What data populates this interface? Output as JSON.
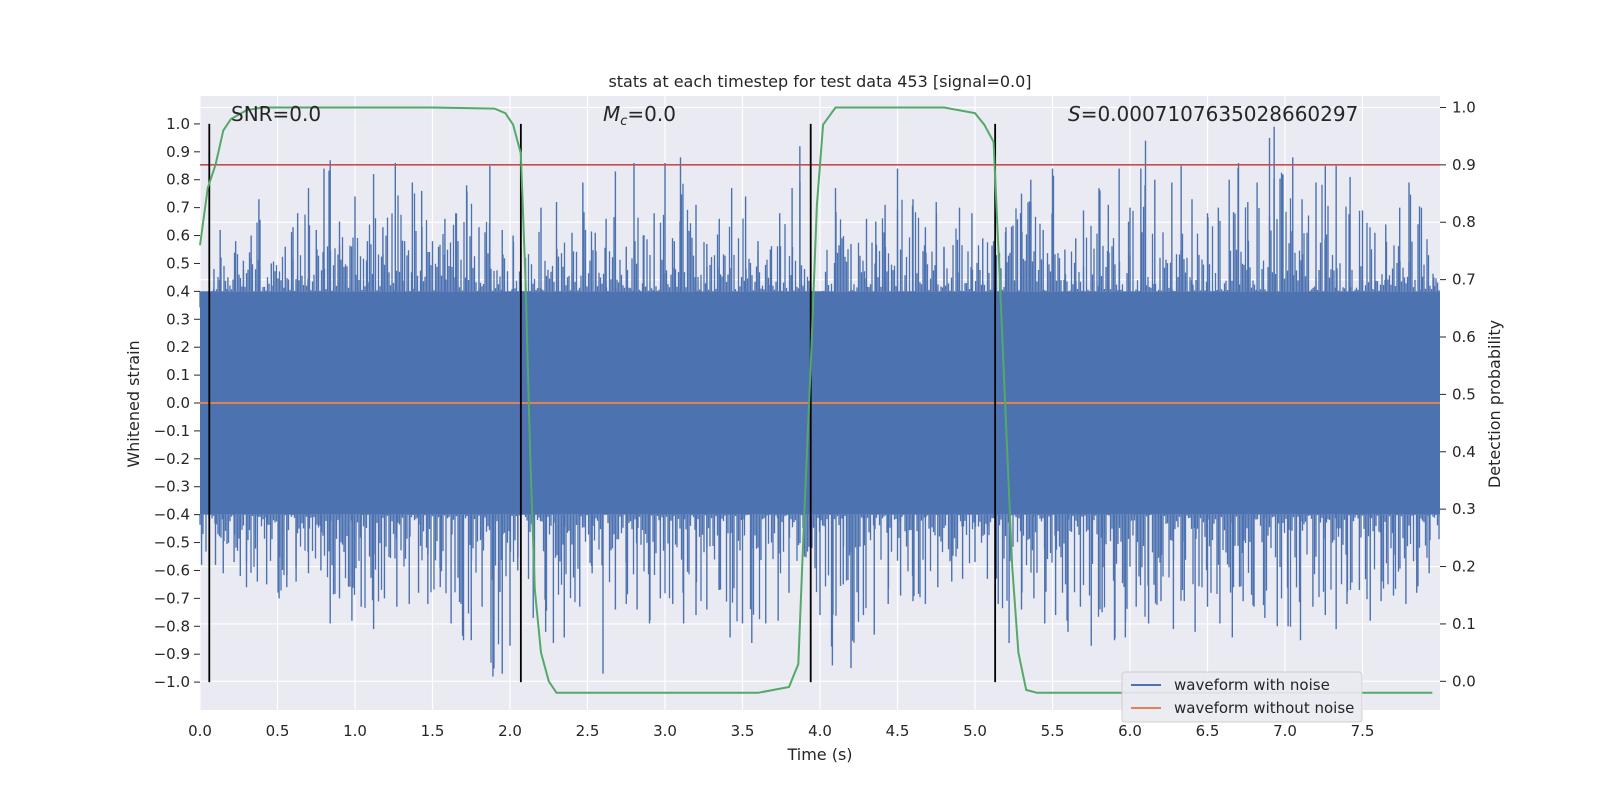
{
  "chart_data": {
    "type": "line",
    "title": "stats at each timestep for test data 453 [signal=0.0]",
    "xlabel": "Time (s)",
    "ylabel": "Whitened strain",
    "y2label": "Detection probability",
    "xlim": [
      0.0,
      8.0
    ],
    "ylim": [
      -1.1,
      1.1
    ],
    "y2lim": [
      -0.05,
      1.02
    ],
    "xticks": [
      0.0,
      0.5,
      1.0,
      1.5,
      2.0,
      2.5,
      3.0,
      3.5,
      4.0,
      4.5,
      5.0,
      5.5,
      6.0,
      6.5,
      7.0,
      7.5
    ],
    "yticks": [
      -1.0,
      -0.9,
      -0.8,
      -0.7,
      -0.6,
      -0.5,
      -0.4,
      -0.3,
      -0.2,
      -0.1,
      0.0,
      0.1,
      0.2,
      0.3,
      0.4,
      0.5,
      0.6,
      0.7,
      0.8,
      0.9,
      1.0
    ],
    "y2ticks": [
      0.0,
      0.1,
      0.2,
      0.3,
      0.4,
      0.5,
      0.6,
      0.7,
      0.8,
      0.9,
      1.0
    ],
    "annotations": [
      {
        "text": "SNR=0.0",
        "x": 0.2
      },
      {
        "text": "M",
        "sub": "c",
        "rest": "=0.0",
        "x": 2.6
      },
      {
        "text": "S",
        "rest": "=0.0007107635028660297",
        "x": 5.6
      }
    ],
    "vlines": [
      0.06,
      2.07,
      3.94,
      5.13
    ],
    "vline_range": [
      -1.0,
      1.0
    ],
    "threshold": {
      "axis": "y2",
      "value": 0.9
    },
    "noise_envelope": {
      "inner_min": -0.4,
      "inner_max": 0.4,
      "spikes_up": [
        [
          0.05,
          0.3
        ],
        [
          0.09,
          0.48
        ],
        [
          0.13,
          0.62
        ],
        [
          0.18,
          0.45
        ],
        [
          0.23,
          0.58
        ],
        [
          0.28,
          0.51
        ],
        [
          0.33,
          0.6
        ],
        [
          0.38,
          0.73
        ],
        [
          0.46,
          0.5
        ],
        [
          0.55,
          0.56
        ],
        [
          0.6,
          0.63
        ],
        [
          0.63,
          0.68
        ],
        [
          0.7,
          0.77
        ],
        [
          0.75,
          0.62
        ],
        [
          0.8,
          0.84
        ],
        [
          0.84,
          0.87
        ],
        [
          0.9,
          0.65
        ],
        [
          1.0,
          0.74
        ],
        [
          1.08,
          0.58
        ],
        [
          1.12,
          0.82
        ],
        [
          1.18,
          0.63
        ],
        [
          1.26,
          0.86
        ],
        [
          1.32,
          0.58
        ],
        [
          1.37,
          0.79
        ],
        [
          1.43,
          0.76
        ],
        [
          1.5,
          0.58
        ],
        [
          1.58,
          0.66
        ],
        [
          1.65,
          0.68
        ],
        [
          1.72,
          0.78
        ],
        [
          1.8,
          0.63
        ],
        [
          1.87,
          0.85
        ],
        [
          1.95,
          0.62
        ],
        [
          2.02,
          0.6
        ],
        [
          2.1,
          0.52
        ],
        [
          2.2,
          0.7
        ],
        [
          2.3,
          0.72
        ],
        [
          2.4,
          0.61
        ],
        [
          2.47,
          0.79
        ],
        [
          2.55,
          0.61
        ],
        [
          2.62,
          0.66
        ],
        [
          2.68,
          0.83
        ],
        [
          2.75,
          0.56
        ],
        [
          2.8,
          0.86
        ],
        [
          2.86,
          0.6
        ],
        [
          2.93,
          0.68
        ],
        [
          3.0,
          0.86
        ],
        [
          3.06,
          0.58
        ],
        [
          3.1,
          0.88
        ],
        [
          3.2,
          0.71
        ],
        [
          3.27,
          0.57
        ],
        [
          3.35,
          0.66
        ],
        [
          3.43,
          0.77
        ],
        [
          3.52,
          0.74
        ],
        [
          3.6,
          0.58
        ],
        [
          3.68,
          0.55
        ],
        [
          3.74,
          0.68
        ],
        [
          3.82,
          0.77
        ],
        [
          3.87,
          0.92
        ],
        [
          3.9,
          0.48
        ],
        [
          4.0,
          0.37
        ],
        [
          4.1,
          0.77
        ],
        [
          4.2,
          0.57
        ],
        [
          4.3,
          0.66
        ],
        [
          4.36,
          0.65
        ],
        [
          4.42,
          0.71
        ],
        [
          4.5,
          0.84
        ],
        [
          4.6,
          0.73
        ],
        [
          4.68,
          0.63
        ],
        [
          4.75,
          0.72
        ],
        [
          4.8,
          0.56
        ],
        [
          4.9,
          0.7
        ],
        [
          4.98,
          0.68
        ],
        [
          5.05,
          0.59
        ],
        [
          5.12,
          0.58
        ],
        [
          5.2,
          0.63
        ],
        [
          5.3,
          0.75
        ],
        [
          5.36,
          0.8
        ],
        [
          5.44,
          0.62
        ],
        [
          5.5,
          0.84
        ],
        [
          5.58,
          0.55
        ],
        [
          5.65,
          0.59
        ],
        [
          5.7,
          0.69
        ],
        [
          5.8,
          0.77
        ],
        [
          5.86,
          0.71
        ],
        [
          5.93,
          0.84
        ],
        [
          6.0,
          0.7
        ],
        [
          6.07,
          0.84
        ],
        [
          6.1,
          0.94
        ],
        [
          6.16,
          0.8
        ],
        [
          6.27,
          0.79
        ],
        [
          6.33,
          0.85
        ],
        [
          6.4,
          0.73
        ],
        [
          6.5,
          0.68
        ],
        [
          6.57,
          0.7
        ],
        [
          6.64,
          0.8
        ],
        [
          6.7,
          0.86
        ],
        [
          6.76,
          0.72
        ],
        [
          6.82,
          0.79
        ],
        [
          6.9,
          0.95
        ],
        [
          6.93,
          0.99
        ],
        [
          6.98,
          0.82
        ],
        [
          7.05,
          0.88
        ],
        [
          7.11,
          0.73
        ],
        [
          7.2,
          0.79
        ],
        [
          7.26,
          0.85
        ],
        [
          7.33,
          0.85
        ],
        [
          7.42,
          0.81
        ],
        [
          7.5,
          0.69
        ],
        [
          7.58,
          0.61
        ],
        [
          7.65,
          0.64
        ],
        [
          7.74,
          0.7
        ],
        [
          7.8,
          0.79
        ],
        [
          7.88,
          0.7
        ],
        [
          7.96,
          0.45
        ]
      ],
      "spikes_down": [
        [
          0.01,
          -0.58
        ],
        [
          0.06,
          -0.56
        ],
        [
          0.1,
          -0.58
        ],
        [
          0.15,
          -0.61
        ],
        [
          0.22,
          -0.57
        ],
        [
          0.26,
          -0.62
        ],
        [
          0.3,
          -0.66
        ],
        [
          0.37,
          -0.64
        ],
        [
          0.43,
          -0.65
        ],
        [
          0.51,
          -0.7
        ],
        [
          0.56,
          -0.66
        ],
        [
          0.62,
          -0.64
        ],
        [
          0.7,
          -0.61
        ],
        [
          0.78,
          -0.6
        ],
        [
          0.84,
          -0.79
        ],
        [
          0.9,
          -0.7
        ],
        [
          0.98,
          -0.78
        ],
        [
          1.04,
          -0.73
        ],
        [
          1.12,
          -0.81
        ],
        [
          1.19,
          -0.7
        ],
        [
          1.27,
          -0.73
        ],
        [
          1.35,
          -0.72
        ],
        [
          1.41,
          -0.68
        ],
        [
          1.47,
          -0.72
        ],
        [
          1.55,
          -0.66
        ],
        [
          1.62,
          -0.79
        ],
        [
          1.7,
          -0.85
        ],
        [
          1.75,
          -0.85
        ],
        [
          1.82,
          -0.73
        ],
        [
          1.89,
          -0.98
        ],
        [
          1.95,
          -0.97
        ],
        [
          2.0,
          -0.87
        ],
        [
          2.05,
          -0.6
        ],
        [
          2.15,
          -0.77
        ],
        [
          2.23,
          -0.82
        ],
        [
          2.28,
          -0.86
        ],
        [
          2.35,
          -0.84
        ],
        [
          2.45,
          -0.73
        ],
        [
          2.53,
          -0.61
        ],
        [
          2.6,
          -0.97
        ],
        [
          2.68,
          -0.74
        ],
        [
          2.75,
          -0.72
        ],
        [
          2.82,
          -0.74
        ],
        [
          2.9,
          -0.79
        ],
        [
          2.97,
          -0.7
        ],
        [
          3.05,
          -0.72
        ],
        [
          3.12,
          -0.79
        ],
        [
          3.2,
          -0.76
        ],
        [
          3.27,
          -0.74
        ],
        [
          3.35,
          -0.67
        ],
        [
          3.42,
          -0.84
        ],
        [
          3.5,
          -0.79
        ],
        [
          3.56,
          -0.86
        ],
        [
          3.65,
          -0.79
        ],
        [
          3.73,
          -0.78
        ],
        [
          3.8,
          -0.68
        ],
        [
          3.9,
          -0.55
        ],
        [
          4.0,
          -0.76
        ],
        [
          4.08,
          -0.94
        ],
        [
          4.15,
          -0.65
        ],
        [
          4.2,
          -0.95
        ],
        [
          4.28,
          -0.76
        ],
        [
          4.35,
          -0.83
        ],
        [
          4.44,
          -0.72
        ],
        [
          4.52,
          -0.69
        ],
        [
          4.6,
          -0.71
        ],
        [
          4.68,
          -0.72
        ],
        [
          4.76,
          -0.66
        ],
        [
          4.85,
          -0.64
        ],
        [
          4.92,
          -0.63
        ],
        [
          5.0,
          -0.57
        ],
        [
          5.08,
          -0.63
        ],
        [
          5.15,
          -0.72
        ],
        [
          5.22,
          -0.86
        ],
        [
          5.3,
          -0.74
        ],
        [
          5.38,
          -0.7
        ],
        [
          5.45,
          -0.79
        ],
        [
          5.52,
          -0.76
        ],
        [
          5.6,
          -0.82
        ],
        [
          5.68,
          -0.73
        ],
        [
          5.75,
          -0.87
        ],
        [
          5.82,
          -0.75
        ],
        [
          5.9,
          -0.85
        ],
        [
          5.97,
          -0.84
        ],
        [
          6.04,
          -0.73
        ],
        [
          6.12,
          -0.79
        ],
        [
          6.2,
          -0.71
        ],
        [
          6.28,
          -0.81
        ],
        [
          6.35,
          -0.71
        ],
        [
          6.42,
          -0.82
        ],
        [
          6.5,
          -0.73
        ],
        [
          6.58,
          -0.79
        ],
        [
          6.66,
          -0.84
        ],
        [
          6.73,
          -0.71
        ],
        [
          6.8,
          -0.73
        ],
        [
          6.87,
          -0.77
        ],
        [
          6.95,
          -0.8
        ],
        [
          7.02,
          -0.8
        ],
        [
          7.1,
          -0.85
        ],
        [
          7.18,
          -0.73
        ],
        [
          7.26,
          -0.76
        ],
        [
          7.33,
          -0.81
        ],
        [
          7.4,
          -0.72
        ],
        [
          7.48,
          -0.67
        ],
        [
          7.55,
          -0.78
        ],
        [
          7.62,
          -0.71
        ],
        [
          7.7,
          -0.69
        ],
        [
          7.78,
          -0.72
        ],
        [
          7.85,
          -0.68
        ],
        [
          7.93,
          -0.61
        ]
      ]
    },
    "series": [
      {
        "name": "waveform with noise",
        "color": "#4c72b0",
        "kind": "noise"
      },
      {
        "name": "waveform without noise",
        "color": "#dd8452",
        "x": [
          0.0,
          8.0
        ],
        "y": [
          0.0,
          0.0
        ]
      },
      {
        "name": "detection probability",
        "axis": "y2",
        "color": "#55a868",
        "x": [
          0.0,
          0.05,
          0.1,
          0.15,
          0.2,
          0.3,
          0.4,
          0.6,
          1.0,
          1.5,
          1.9,
          1.97,
          2.02,
          2.07,
          2.1,
          2.13,
          2.16,
          2.2,
          2.25,
          2.3,
          2.4,
          3.0,
          3.6,
          3.8,
          3.86,
          3.9,
          3.94,
          3.98,
          4.02,
          4.1,
          4.3,
          4.8,
          5.0,
          5.06,
          5.12,
          5.16,
          5.2,
          5.24,
          5.28,
          5.33,
          5.4,
          6.0,
          7.0,
          7.95
        ],
        "y": [
          0.76,
          0.86,
          0.9,
          0.96,
          0.98,
          0.995,
          1.0,
          1.0,
          1.0,
          1.0,
          0.998,
          0.99,
          0.97,
          0.92,
          0.7,
          0.4,
          0.16,
          0.05,
          0.0,
          -0.02,
          -0.02,
          -0.02,
          -0.02,
          -0.01,
          0.03,
          0.3,
          0.55,
          0.83,
          0.97,
          1.0,
          1.0,
          1.0,
          0.99,
          0.97,
          0.94,
          0.7,
          0.45,
          0.2,
          0.05,
          -0.015,
          -0.02,
          -0.02,
          -0.02,
          -0.02
        ]
      }
    ],
    "legend": {
      "position": "bottom-right",
      "entries": [
        "waveform with noise",
        "waveform without noise"
      ]
    }
  }
}
